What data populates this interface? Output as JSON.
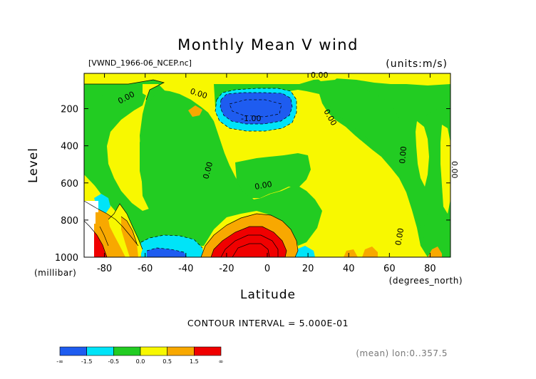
{
  "chart_data": {
    "type": "contour",
    "title": "Monthly Mean V wind",
    "source_label": "[VWND_1966-06_NCEP.nc]",
    "units_label": "(units:m/s)",
    "xlabel": "Latitude",
    "xunits": "(degrees_north)",
    "ylabel": "Level",
    "yunits": "(millibar)",
    "x_ticks": [
      -80,
      -60,
      -40,
      -20,
      0,
      20,
      40,
      60,
      80
    ],
    "x_tick_labels": [
      "-80",
      "-60",
      "-40",
      "-20",
      "0",
      "20",
      "40",
      "60",
      "80"
    ],
    "y_ticks": [
      200,
      400,
      600,
      800,
      1000
    ],
    "y_tick_labels": [
      "200",
      "400",
      "600",
      "800",
      "1000"
    ],
    "xlim": [
      -90,
      90
    ],
    "ylim": [
      1000,
      10
    ],
    "contour_interval_label": "CONTOUR INTERVAL = 5.000E-01",
    "contour_labels": [
      "0.00",
      "0.00",
      "-1.00",
      "0.00",
      "0.00",
      "0.00",
      "0.00",
      "0.00",
      "0.00",
      "0.00"
    ],
    "footer_label": "(mean) lon:0..357.5",
    "colorbar": {
      "colors": [
        "#1e5cf0",
        "#00e4f8",
        "#22cc22",
        "#f8f800",
        "#f8a800",
        "#f00000"
      ],
      "tick_labels": [
        "-∞",
        "-1.5",
        "-0.5",
        "0.0",
        "0.5",
        "1.5",
        "∞"
      ]
    },
    "regions": [
      {
        "name": "upper-jet-negative",
        "value": -1.5
      },
      {
        "name": "southern-tropical-negative",
        "value": -0.5
      },
      {
        "name": "tropical-lower-positive",
        "value": 1.5
      },
      {
        "name": "antarctic-surface-positive",
        "value": 1.5
      }
    ]
  }
}
